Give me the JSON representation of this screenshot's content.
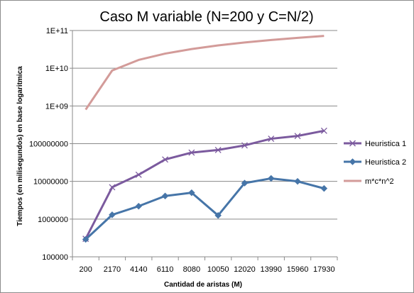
{
  "chart_data": {
    "type": "line",
    "title": "Caso M variable (N=200 y C=N/2)",
    "xlabel": "Cantidad de aristas (M)",
    "ylabel": "Tiempos (en milisegundos) en base logaritmica",
    "y_scale": "log",
    "ylim": [
      100000,
      100000000000
    ],
    "y_ticks": [
      100000,
      1000000,
      10000000,
      100000000,
      1000000000,
      10000000000,
      100000000000
    ],
    "y_tick_labels": [
      "100000",
      "1000000",
      "10000000",
      "100000000",
      "1E+09",
      "1E+10",
      "1E+11"
    ],
    "categories": [
      "200",
      "2170",
      "4140",
      "6110",
      "8080",
      "10050",
      "12020",
      "13990",
      "15960",
      "17930"
    ],
    "grid": "horizontal",
    "legend_position": "right",
    "series": [
      {
        "name": "Heuristica 1",
        "color": "#7b5a9e",
        "marker": "x",
        "values": [
          300000,
          7000000,
          15000000,
          38000000,
          58000000,
          68000000,
          90000000,
          135000000,
          160000000,
          220000000
        ]
      },
      {
        "name": "Heuristica 2",
        "color": "#4675a8",
        "marker": "diamond",
        "values": [
          290000,
          1300000,
          2200000,
          4100000,
          5000000,
          1250000,
          9000000,
          12000000,
          10000000,
          6500000
        ]
      },
      {
        "name": "m*c*n^2",
        "color": "#d39b99",
        "marker": "none",
        "values": [
          800000000,
          8700000000,
          16600000000,
          24400000000,
          32300000000,
          40200000000,
          48100000000,
          55900000000,
          63800000000,
          71700000000
        ]
      }
    ]
  }
}
